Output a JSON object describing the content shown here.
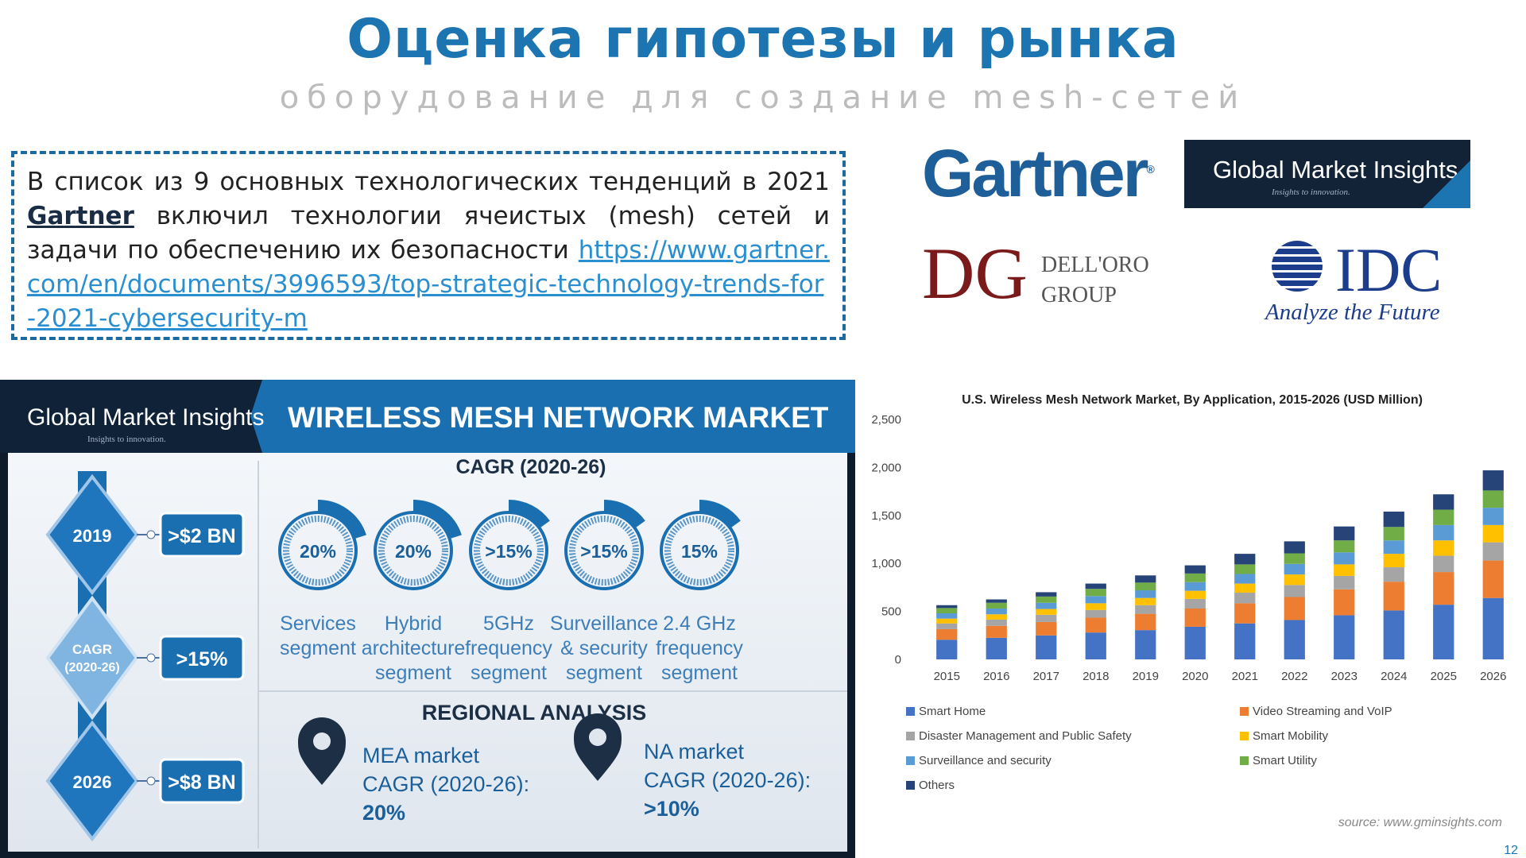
{
  "slide": {
    "title": "Оценка гипотезы и рынка",
    "subtitle": "оборудование для создание mesh-сетей",
    "page_number": "12"
  },
  "textbox": {
    "text_before": "В список из 9 основных  технологических тенденций в 2021",
    "bold_word": "Gartner",
    "text_after": "включил технологии ячеистых (mesh) сетей и задачи по обеспечению их безопасности",
    "link": "https://www.gartner.com/en/documents/3996593/top-strategic-technology-trends-for-2021-cybersecurity-m"
  },
  "logos": {
    "gartner": "Gartner",
    "gartner_mark": "®",
    "gmi_name": "Global Market Insights",
    "gmi_tagline": "Insights to innovation.",
    "delloro_line1": "DELL'ORO",
    "delloro_line2": "GROUP",
    "idc_name": "IDC",
    "idc_tagline": "Analyze the Future",
    "colors": {
      "gartner": "#1e5f99",
      "gmi_bg": "#122338",
      "delloro": "#7a1a1a",
      "idc": "#1c3c8c"
    }
  },
  "infographic": {
    "brand": "Global Market Insights",
    "brand_tag": "Insights to innovation.",
    "title": "WIRELESS MESH NETWORK MARKET",
    "cagr_header": "CAGR (2020-26)",
    "timeline": [
      {
        "label": "2019",
        "value": ">$2 BN"
      },
      {
        "label_line1": "CAGR",
        "label_line2": "(2020-26)",
        "value": ">15%"
      },
      {
        "label": "2026",
        "value": ">$8 BN"
      }
    ],
    "segments": [
      {
        "pct": "20%",
        "line1": "Services",
        "line2": "segment",
        "line3": "",
        "fill": 0.2
      },
      {
        "pct": "20%",
        "line1": "Hybrid",
        "line2": "architecture",
        "line3": "segment",
        "fill": 0.2
      },
      {
        "pct": ">15%",
        "line1": "5GHz",
        "line2": "frequency",
        "line3": "segment",
        "fill": 0.15
      },
      {
        "pct": ">15%",
        "line1": "Surveillance",
        "line2": "& security",
        "line3": "segment",
        "fill": 0.15
      },
      {
        "pct": "15%",
        "line1": "2.4 GHz",
        "line2": "frequency",
        "line3": "segment",
        "fill": 0.15
      }
    ],
    "regional_header": "REGIONAL ANALYSIS",
    "regions": [
      {
        "line1": "MEA market",
        "line2": "CAGR (2020-26):",
        "line3": "20%"
      },
      {
        "line1": "NA market",
        "line2": "CAGR (2020-26):",
        "line3": ">10%"
      }
    ]
  },
  "chart_data": {
    "type": "bar",
    "stacked": true,
    "title": "U.S. Wireless Mesh Network Market, By Application, 2015-2026 (USD Million)",
    "categories": [
      "2015",
      "2016",
      "2017",
      "2018",
      "2019",
      "2020",
      "2021",
      "2022",
      "2023",
      "2024",
      "2025",
      "2026"
    ],
    "yticks": [
      "0",
      "500",
      "1,000",
      "1,500",
      "2,000",
      "2,500"
    ],
    "ylim": [
      0,
      2500
    ],
    "legend_position": "bottom",
    "series": [
      {
        "name": "Smart Home",
        "color": "#4472c4",
        "values": [
          205,
          225,
          250,
          280,
          305,
          340,
          375,
          410,
          460,
          510,
          570,
          640
        ]
      },
      {
        "name": "Video Streaming and VoIP",
        "color": "#ed7d31",
        "values": [
          110,
          125,
          140,
          155,
          170,
          190,
          210,
          240,
          270,
          300,
          340,
          390
        ]
      },
      {
        "name": "Disaster Management and Public Safety",
        "color": "#a5a5a5",
        "values": [
          60,
          65,
          75,
          80,
          90,
          100,
          110,
          125,
          140,
          150,
          170,
          190
        ]
      },
      {
        "name": "Smart Mobility",
        "color": "#ffc000",
        "values": [
          50,
          55,
          60,
          70,
          75,
          85,
          95,
          110,
          120,
          140,
          160,
          180
        ]
      },
      {
        "name": "Surveillance and security",
        "color": "#5b9bd5",
        "values": [
          55,
          60,
          65,
          75,
          80,
          90,
          100,
          110,
          125,
          140,
          160,
          180
        ]
      },
      {
        "name": "Smart Utility",
        "color": "#70ad47",
        "values": [
          55,
          60,
          65,
          75,
          80,
          90,
          100,
          110,
          125,
          140,
          160,
          180
        ]
      },
      {
        "name": "Others",
        "color": "#264478",
        "values": [
          30,
          35,
          45,
          55,
          75,
          85,
          110,
          125,
          145,
          160,
          160,
          210
        ]
      }
    ],
    "source": "source: www.gminsights.com"
  }
}
